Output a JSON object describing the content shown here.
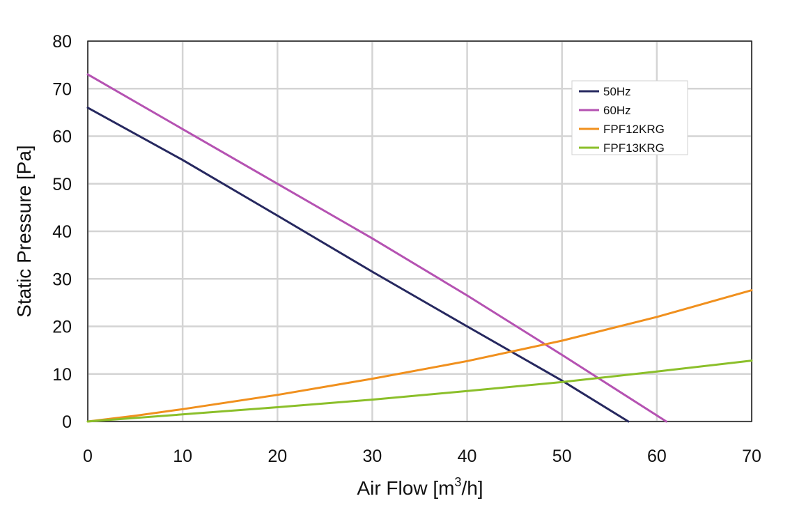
{
  "chart_data": {
    "type": "line",
    "title": "",
    "xlabel_main": "Air Flow [m",
    "xlabel_sup": "3",
    "xlabel_tail": "/h]",
    "ylabel": "Static Pressure [Pa]",
    "xlim": [
      0,
      70
    ],
    "ylim": [
      0,
      80
    ],
    "xticks": [
      "0",
      "10",
      "20",
      "30",
      "40",
      "50",
      "60",
      "70"
    ],
    "yticks": [
      "0",
      "10",
      "20",
      "30",
      "40",
      "50",
      "60",
      "70",
      "80"
    ],
    "grid": true,
    "legend_position": "top-right",
    "series": [
      {
        "name": "50Hz",
        "color": "#26285f",
        "points": [
          [
            0,
            66
          ],
          [
            10,
            55
          ],
          [
            20,
            43.3
          ],
          [
            30,
            31.5
          ],
          [
            40,
            20
          ],
          [
            50,
            8.6
          ],
          [
            57,
            0
          ]
        ]
      },
      {
        "name": "60Hz",
        "color": "#b552b2",
        "points": [
          [
            0,
            73
          ],
          [
            10,
            61.5
          ],
          [
            20,
            50
          ],
          [
            30,
            38.5
          ],
          [
            40,
            26.5
          ],
          [
            50,
            14
          ],
          [
            61,
            0
          ]
        ]
      },
      {
        "name": "FPF12KRG",
        "color": "#f0901e",
        "points": [
          [
            0,
            0
          ],
          [
            5,
            1.2
          ],
          [
            10,
            2.6
          ],
          [
            20,
            5.6
          ],
          [
            30,
            9
          ],
          [
            40,
            12.7
          ],
          [
            50,
            17
          ],
          [
            60,
            22
          ],
          [
            70,
            27.6
          ]
        ]
      },
      {
        "name": "FPF13KRG",
        "color": "#8bbf2a",
        "points": [
          [
            0,
            0
          ],
          [
            10,
            1.5
          ],
          [
            20,
            3
          ],
          [
            30,
            4.6
          ],
          [
            40,
            6.4
          ],
          [
            50,
            8.3
          ],
          [
            60,
            10.5
          ],
          [
            70,
            12.8
          ]
        ]
      }
    ]
  }
}
